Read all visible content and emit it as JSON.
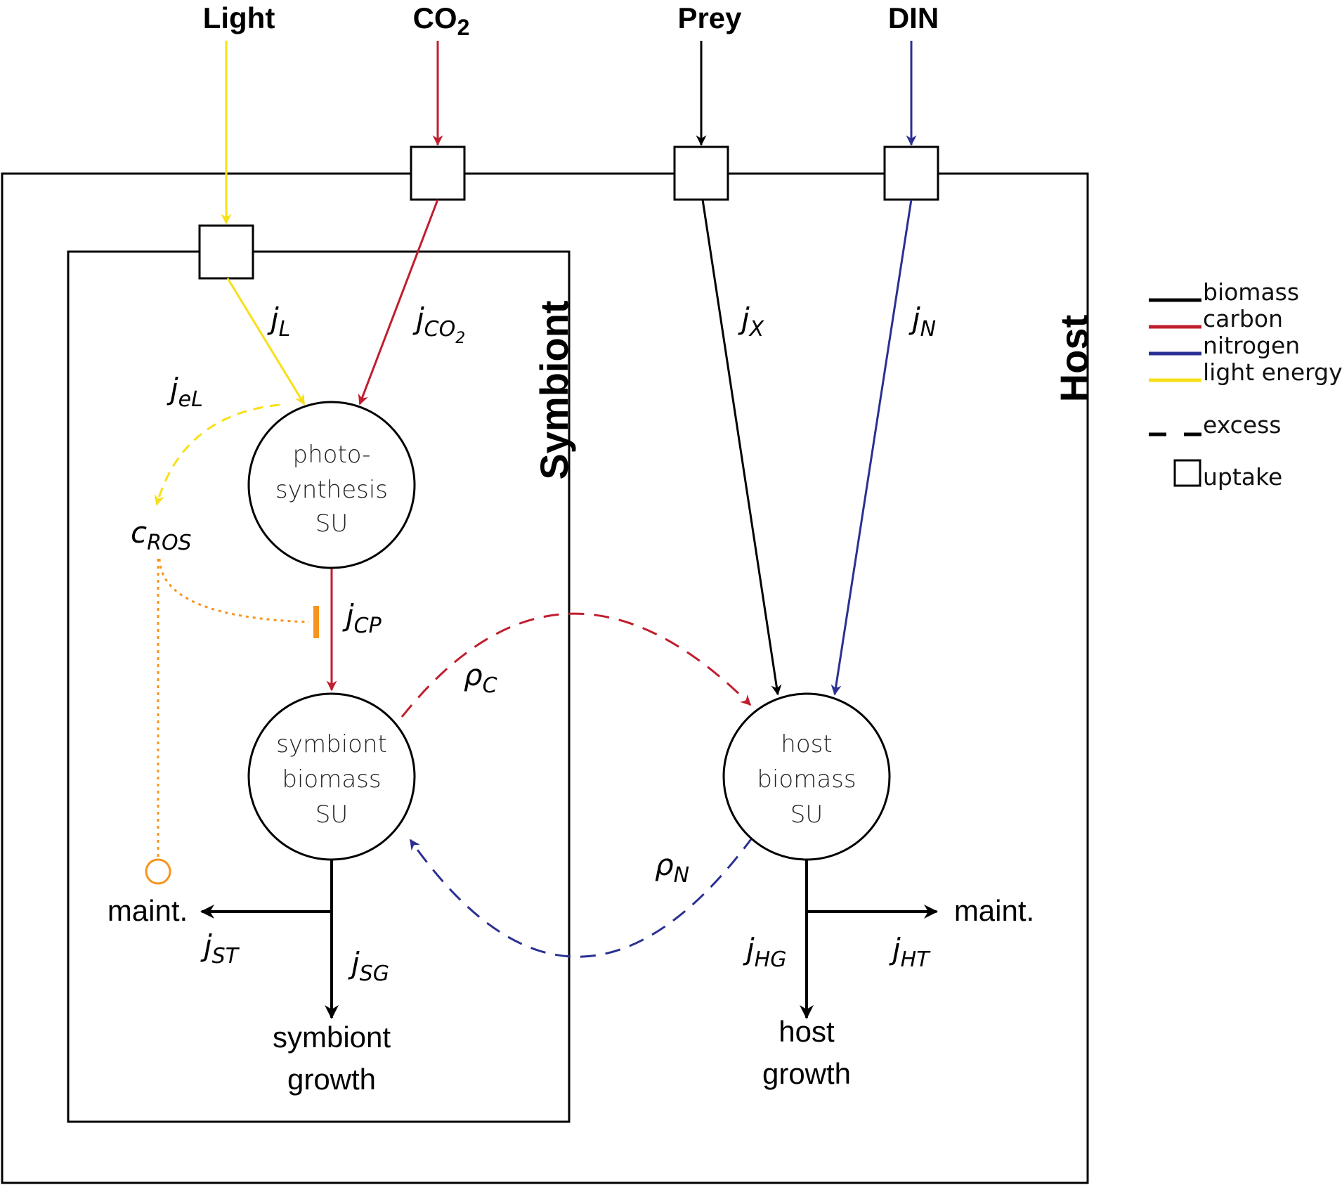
{
  "colors": {
    "biomass": "#000000",
    "carbon": "#c01e2e",
    "nitrogen": "#2b3092",
    "light": "#f7e017",
    "ros": "#f7941d"
  },
  "inputs": {
    "light": "Light",
    "co2_main": "CO",
    "co2_sub": "2",
    "prey": "Prey",
    "din": "DIN"
  },
  "compartments": {
    "host": "Host",
    "symbiont": "Symbiont"
  },
  "units": {
    "photosynthesis": [
      "photo-",
      "synthesis",
      "SU"
    ],
    "symbiont_biomass": [
      "symbiont",
      "biomass",
      "SU"
    ],
    "host_biomass": [
      "host",
      "biomass",
      "SU"
    ]
  },
  "fluxes": {
    "jL": {
      "main": "j",
      "sub": "L"
    },
    "jCO2": {
      "main": "j",
      "sub": "CO",
      "sub2": "2"
    },
    "jX": {
      "main": "j",
      "sub": "X"
    },
    "jN": {
      "main": "j",
      "sub": "N"
    },
    "jeL": {
      "main": "j",
      "sub": "eL"
    },
    "cROS": {
      "main": "c",
      "sub": "ROS"
    },
    "jCP": {
      "main": "j",
      "sub": "CP"
    },
    "rhoC": {
      "main": "ρ",
      "sub": "C"
    },
    "rhoN": {
      "main": "ρ",
      "sub": "N"
    },
    "jST": {
      "main": "j",
      "sub": "ST"
    },
    "jSG": {
      "main": "j",
      "sub": "SG"
    },
    "jHG": {
      "main": "j",
      "sub": "HG"
    },
    "jHT": {
      "main": "j",
      "sub": "HT"
    }
  },
  "outputs": {
    "symbiont_maint": "maint.",
    "host_maint": "maint.",
    "symbiont_growth": [
      "symbiont",
      "growth"
    ],
    "host_growth": [
      "host",
      "growth"
    ]
  },
  "legend": {
    "biomass": "biomass",
    "carbon": "carbon",
    "nitrogen": "nitrogen",
    "light": "light energy",
    "excess": "excess",
    "uptake": "uptake"
  }
}
